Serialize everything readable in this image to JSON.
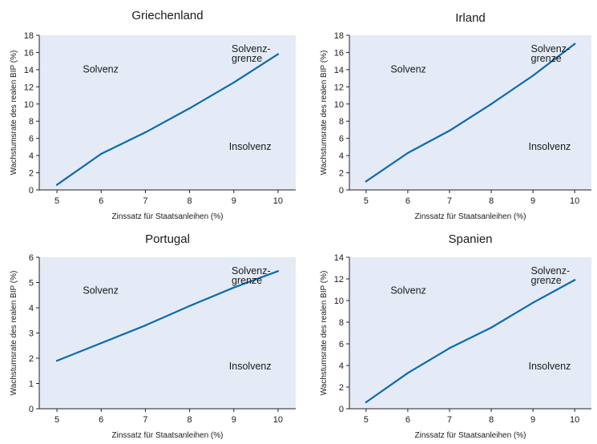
{
  "colors": {
    "plot_background": "#e4ebf6",
    "line": "#0d6aad",
    "axis": "#222222",
    "text": "#1a1a1a"
  },
  "chart_data": [
    {
      "type": "line",
      "title": "Griechenland",
      "xlabel": "Zinssatz für Staatsanleihen (%)",
      "ylabel": "Wachstumsrate des realen BIP (%)",
      "xlim": [
        4.6,
        10.4
      ],
      "ylim": [
        0,
        18
      ],
      "x_ticks": [
        5,
        6,
        7,
        8,
        9,
        10
      ],
      "y_ticks": [
        0,
        2,
        4,
        6,
        8,
        10,
        12,
        14,
        16,
        18
      ],
      "x": [
        5,
        6,
        7,
        8,
        9,
        10
      ],
      "series": [
        {
          "values": [
            0.6,
            4.2,
            6.7,
            9.5,
            12.5,
            15.8
          ]
        }
      ],
      "annotations": {
        "solvency": "Solvenz",
        "boundary_line1": "Solvenz-",
        "boundary_line2": "grenze",
        "insolvency": "Insolvenz"
      },
      "grid": false
    },
    {
      "type": "line",
      "title": "Irland",
      "xlabel": "Zinssatz für Staatsanleihen (%)",
      "ylabel": "Wachstumsrate des realen BIP (%)",
      "xlim": [
        4.6,
        10.4
      ],
      "ylim": [
        0,
        18
      ],
      "x_ticks": [
        5,
        6,
        7,
        8,
        9,
        10
      ],
      "y_ticks": [
        0,
        2,
        4,
        6,
        8,
        10,
        12,
        14,
        16,
        18
      ],
      "x": [
        5,
        6,
        7,
        8,
        9,
        10
      ],
      "series": [
        {
          "values": [
            1.0,
            4.3,
            6.9,
            10.0,
            13.3,
            17.0
          ]
        }
      ],
      "annotations": {
        "solvency": "Solvenz",
        "boundary_line1": "Solvenz-",
        "boundary_line2": "grenze",
        "insolvency": "Insolvenz"
      },
      "grid": false
    },
    {
      "type": "line",
      "title": "Portugal",
      "xlabel": "Zinssatz für Staatsanleihen (%)",
      "ylabel": "Wachstumsrate des realen BIP (%)",
      "xlim": [
        4.6,
        10.4
      ],
      "ylim": [
        0,
        6
      ],
      "x_ticks": [
        5,
        6,
        7,
        8,
        9,
        10
      ],
      "y_ticks": [
        0,
        1,
        2,
        3,
        4,
        5,
        6
      ],
      "x": [
        5,
        6,
        7,
        8,
        9,
        10
      ],
      "series": [
        {
          "values": [
            1.9,
            2.6,
            3.3,
            4.07,
            4.8,
            5.45
          ]
        }
      ],
      "annotations": {
        "solvency": "Solvenz",
        "boundary_line1": "Solvenz-",
        "boundary_line2": "grenze",
        "insolvency": "Insolvenz"
      },
      "grid": false
    },
    {
      "type": "line",
      "title": "Spanien",
      "xlabel": "Zinssatz für Staatsanleihen (%)",
      "ylabel": "Wachstumsrate des realen BIP (%)",
      "xlim": [
        4.6,
        10.4
      ],
      "ylim": [
        0,
        14
      ],
      "x_ticks": [
        5,
        6,
        7,
        8,
        9,
        10
      ],
      "y_ticks": [
        0,
        2,
        4,
        6,
        8,
        10,
        12,
        14
      ],
      "x": [
        5,
        6,
        7,
        8,
        9,
        10
      ],
      "series": [
        {
          "values": [
            0.6,
            3.3,
            5.6,
            7.5,
            9.8,
            11.9
          ]
        }
      ],
      "annotations": {
        "solvency": "Solvenz",
        "boundary_line1": "Solvenz-",
        "boundary_line2": "grenze",
        "insolvency": "Insolvenz"
      },
      "grid": false
    }
  ]
}
